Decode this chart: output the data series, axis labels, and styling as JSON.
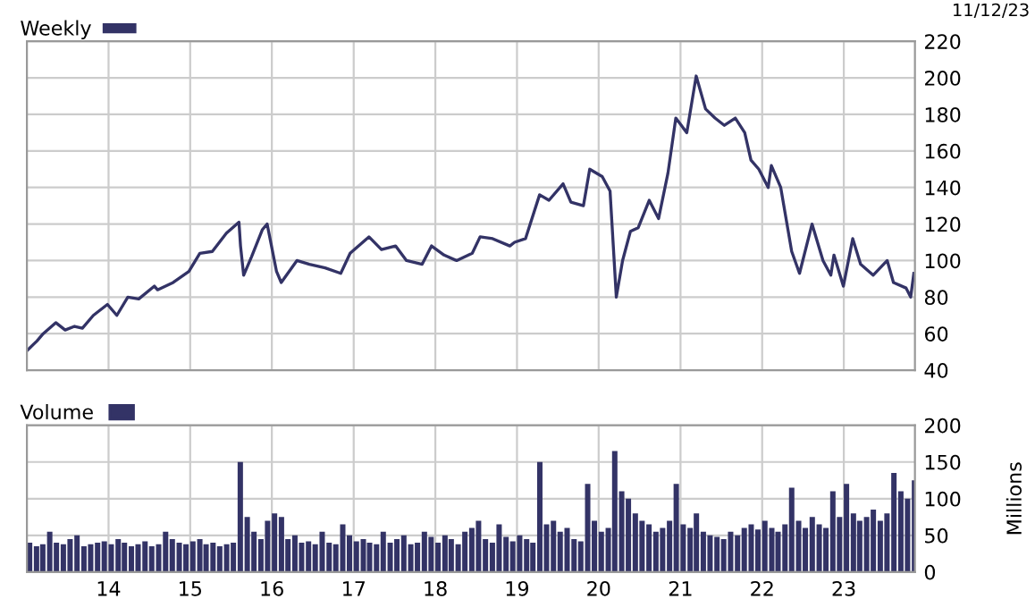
{
  "chart_data": [
    {
      "type": "line",
      "xlim": [
        "2013-01-01",
        "2023-11-15"
      ],
      "ylim": [
        40,
        220
      ],
      "yticks": [
        40,
        60,
        80,
        100,
        120,
        140,
        160,
        180,
        200,
        220
      ],
      "xticks": [
        {
          "value": "2014-01-01",
          "label": null
        },
        {
          "value": "2015-01-01",
          "label": null
        },
        {
          "value": "2016-01-01",
          "label": null
        },
        {
          "value": "2017-01-01",
          "label": null
        },
        {
          "value": "2018-01-01",
          "label": null
        },
        {
          "value": "2019-01-01",
          "label": null
        },
        {
          "value": "2020-01-01",
          "label": null
        },
        {
          "value": "2021-01-01",
          "label": null
        },
        {
          "value": "2022-01-01",
          "label": null
        },
        {
          "value": "2023-01-01",
          "label": null
        }
      ],
      "tick_labels": "y",
      "grid": true,
      "legend": "top left",
      "annotations": [
        "11/12/23"
      ],
      "series": [
        {
          "name": "Weekly",
          "color": "#333366",
          "x": [
            "2013-01-04",
            "2013-02-15",
            "2013-03-15",
            "2013-05-10",
            "2013-06-21",
            "2013-08-02",
            "2013-09-06",
            "2013-10-25",
            "2013-12-27",
            "2014-02-07",
            "2014-03-28",
            "2014-05-16",
            "2014-07-25",
            "2014-08-08",
            "2014-10-17",
            "2014-12-26",
            "2015-02-13",
            "2015-04-10",
            "2015-06-12",
            "2015-08-07",
            "2015-08-14",
            "2015-08-28",
            "2015-10-02",
            "2015-11-20",
            "2015-12-11",
            "2016-01-22",
            "2016-02-12",
            "2016-04-22",
            "2016-06-17",
            "2016-08-26",
            "2016-11-04",
            "2016-12-16",
            "2017-03-10",
            "2017-05-05",
            "2017-07-07",
            "2017-08-25",
            "2017-11-03",
            "2017-12-15",
            "2018-02-09",
            "2018-04-06",
            "2018-06-15",
            "2018-07-20",
            "2018-09-14",
            "2018-11-30",
            "2018-12-21",
            "2019-02-08",
            "2019-04-12",
            "2019-05-24",
            "2019-07-26",
            "2019-08-30",
            "2019-10-25",
            "2019-11-22",
            "2020-01-17",
            "2020-02-21",
            "2020-03-20",
            "2020-04-17",
            "2020-05-22",
            "2020-06-26",
            "2020-08-14",
            "2020-09-25",
            "2020-11-06",
            "2020-12-11",
            "2021-01-29",
            "2021-03-12",
            "2021-04-23",
            "2021-06-04",
            "2021-07-16",
            "2021-09-03",
            "2021-10-15",
            "2021-11-12",
            "2021-12-17",
            "2022-01-28",
            "2022-02-11",
            "2022-03-25",
            "2022-05-13",
            "2022-06-17",
            "2022-08-12",
            "2022-09-30",
            "2022-11-04",
            "2022-11-18",
            "2022-12-30",
            "2023-02-10",
            "2023-03-17",
            "2023-05-12",
            "2023-07-14",
            "2023-08-11",
            "2023-10-06",
            "2023-10-27",
            "2023-11-10"
          ],
          "values": [
            51,
            56,
            60,
            66,
            62,
            64,
            63,
            70,
            76,
            70,
            80,
            79,
            86,
            84,
            88,
            94,
            104,
            105,
            115,
            121,
            108,
            92,
            102,
            117,
            120,
            94,
            88,
            100,
            98,
            96,
            93,
            104,
            113,
            106,
            108,
            100,
            98,
            108,
            103,
            100,
            104,
            113,
            112,
            108,
            110,
            112,
            136,
            133,
            142,
            132,
            130,
            150,
            146,
            138,
            80,
            100,
            116,
            118,
            133,
            123,
            148,
            178,
            170,
            201,
            183,
            178,
            174,
            178,
            170,
            155,
            150,
            140,
            152,
            140,
            105,
            93,
            120,
            100,
            92,
            103,
            86,
            112,
            98,
            92,
            100,
            88,
            85,
            80,
            93
          ]
        }
      ]
    },
    {
      "type": "bar",
      "xlim": [
        "2013-01-01",
        "2023-11-15"
      ],
      "ylim": [
        0,
        200
      ],
      "yticks": [
        0,
        50,
        100,
        150,
        200
      ],
      "xticks": [
        {
          "value": "2014-01-01",
          "label": "14"
        },
        {
          "value": "2015-01-01",
          "label": "15"
        },
        {
          "value": "2016-01-01",
          "label": "16"
        },
        {
          "value": "2017-01-01",
          "label": "17"
        },
        {
          "value": "2018-01-01",
          "label": "18"
        },
        {
          "value": "2019-01-01",
          "label": "19"
        },
        {
          "value": "2020-01-01",
          "label": "20"
        },
        {
          "value": "2021-01-01",
          "label": "21"
        },
        {
          "value": "2022-01-01",
          "label": "22"
        },
        {
          "value": "2023-01-01",
          "label": "23"
        }
      ],
      "ylabel": "Millions",
      "grid": true,
      "legend": "top left",
      "series": [
        {
          "name": "Volume",
          "color": "#333366",
          "x": [
            "2013-01",
            "2013-02",
            "2013-03",
            "2013-04",
            "2013-05",
            "2013-06",
            "2013-07",
            "2013-08",
            "2013-09",
            "2013-10",
            "2013-11",
            "2013-12",
            "2014-01",
            "2014-02",
            "2014-03",
            "2014-04",
            "2014-05",
            "2014-06",
            "2014-07",
            "2014-08",
            "2014-09",
            "2014-10",
            "2014-11",
            "2014-12",
            "2015-01",
            "2015-02",
            "2015-03",
            "2015-04",
            "2015-05",
            "2015-06",
            "2015-07",
            "2015-08",
            "2015-09",
            "2015-10",
            "2015-11",
            "2015-12",
            "2016-01",
            "2016-02",
            "2016-03",
            "2016-04",
            "2016-05",
            "2016-06",
            "2016-07",
            "2016-08",
            "2016-09",
            "2016-10",
            "2016-11",
            "2016-12",
            "2017-01",
            "2017-02",
            "2017-03",
            "2017-04",
            "2017-05",
            "2017-06",
            "2017-07",
            "2017-08",
            "2017-09",
            "2017-10",
            "2017-11",
            "2017-12",
            "2018-01",
            "2018-02",
            "2018-03",
            "2018-04",
            "2018-05",
            "2018-06",
            "2018-07",
            "2018-08",
            "2018-09",
            "2018-10",
            "2018-11",
            "2018-12",
            "2019-01",
            "2019-02",
            "2019-03",
            "2019-04",
            "2019-05",
            "2019-06",
            "2019-07",
            "2019-08",
            "2019-09",
            "2019-10",
            "2019-11",
            "2019-12",
            "2020-01",
            "2020-02",
            "2020-03",
            "2020-04",
            "2020-05",
            "2020-06",
            "2020-07",
            "2020-08",
            "2020-09",
            "2020-10",
            "2020-11",
            "2020-12",
            "2021-01",
            "2021-02",
            "2021-03",
            "2021-04",
            "2021-05",
            "2021-06",
            "2021-07",
            "2021-08",
            "2021-09",
            "2021-10",
            "2021-11",
            "2021-12",
            "2022-01",
            "2022-02",
            "2022-03",
            "2022-04",
            "2022-05",
            "2022-06",
            "2022-07",
            "2022-08",
            "2022-09",
            "2022-10",
            "2022-11",
            "2022-12",
            "2023-01",
            "2023-02",
            "2023-03",
            "2023-04",
            "2023-05",
            "2023-06",
            "2023-07",
            "2023-08",
            "2023-09",
            "2023-10",
            "2023-11"
          ],
          "values": [
            40,
            35,
            38,
            55,
            40,
            38,
            45,
            50,
            35,
            38,
            40,
            42,
            38,
            45,
            40,
            35,
            38,
            42,
            35,
            38,
            55,
            45,
            40,
            38,
            42,
            45,
            38,
            40,
            35,
            38,
            40,
            150,
            75,
            55,
            45,
            70,
            80,
            75,
            45,
            50,
            40,
            42,
            38,
            55,
            40,
            38,
            65,
            50,
            42,
            45,
            40,
            38,
            55,
            40,
            45,
            50,
            38,
            40,
            55,
            48,
            40,
            50,
            45,
            38,
            55,
            60,
            70,
            45,
            40,
            65,
            48,
            42,
            50,
            45,
            40,
            150,
            65,
            70,
            55,
            60,
            45,
            42,
            120,
            70,
            55,
            60,
            165,
            110,
            100,
            80,
            70,
            65,
            55,
            60,
            70,
            120,
            65,
            60,
            80,
            55,
            50,
            48,
            45,
            55,
            50,
            60,
            65,
            58,
            70,
            60,
            55,
            65,
            115,
            70,
            60,
            75,
            65,
            60,
            110,
            75,
            120,
            80,
            70,
            75,
            85,
            70,
            80,
            135,
            110,
            100,
            125
          ]
        }
      ]
    }
  ]
}
